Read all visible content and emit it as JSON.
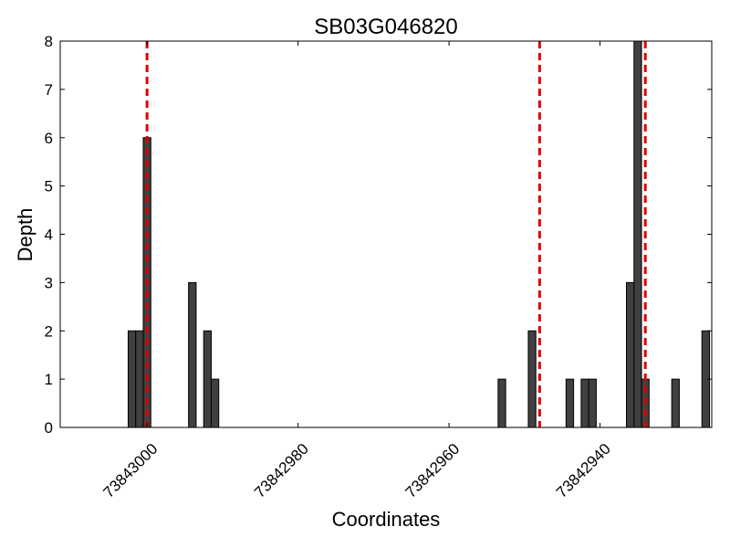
{
  "chart_data": {
    "type": "bar",
    "title": "SB03G046820",
    "xlabel": "Coordinates",
    "ylabel": "Depth",
    "ylim": [
      0,
      8
    ],
    "xlim": [
      73843011.5,
      73842925.2
    ],
    "x_inverted": true,
    "y_ticks": [
      0,
      1,
      2,
      3,
      4,
      5,
      6,
      7,
      8
    ],
    "x_ticks": [
      {
        "value": 73843000,
        "label": "73843000"
      },
      {
        "value": 73842980,
        "label": "73842980"
      },
      {
        "value": 73842960,
        "label": "73842960"
      },
      {
        "value": 73842940,
        "label": "73842940"
      }
    ],
    "bar_width": 1,
    "bars": [
      {
        "x": 73843002,
        "y": 2
      },
      {
        "x": 73843001,
        "y": 2
      },
      {
        "x": 73843000,
        "y": 6
      },
      {
        "x": 73842994,
        "y": 3
      },
      {
        "x": 73842992,
        "y": 2
      },
      {
        "x": 73842991,
        "y": 1
      },
      {
        "x": 73842953,
        "y": 1
      },
      {
        "x": 73842949,
        "y": 2
      },
      {
        "x": 73842944,
        "y": 1
      },
      {
        "x": 73842942,
        "y": 1
      },
      {
        "x": 73842941,
        "y": 1
      },
      {
        "x": 73842936,
        "y": 3
      },
      {
        "x": 73842935,
        "y": 8
      },
      {
        "x": 73842934,
        "y": 1
      },
      {
        "x": 73842930,
        "y": 1
      },
      {
        "x": 73842926,
        "y": 2
      }
    ],
    "reference_lines": [
      73843000,
      73842948,
      73842934
    ],
    "reference_line_color": "#e00000",
    "bar_color": "#404040",
    "grid": false
  }
}
